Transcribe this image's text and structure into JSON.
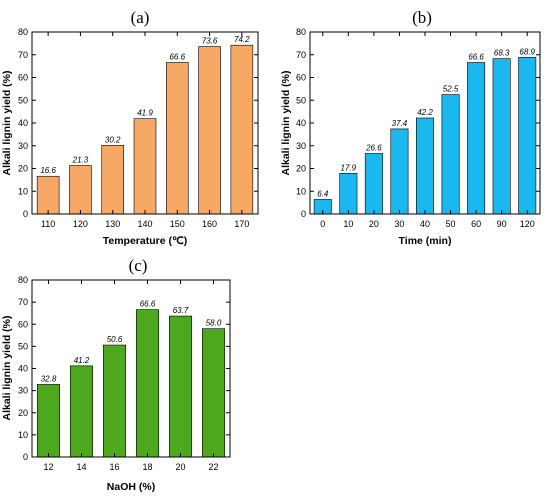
{
  "chart_data": [
    {
      "type": "bar",
      "panel_label": "(a)",
      "categories": [
        "110",
        "120",
        "130",
        "140",
        "150",
        "160",
        "170"
      ],
      "values": [
        16.6,
        21.3,
        30.2,
        41.9,
        66.6,
        73.6,
        74.2
      ],
      "data_labels": [
        "16.6",
        "21.3",
        "30.2",
        "41.9",
        "66.6",
        "73.6",
        "74.2"
      ],
      "xlabel": "Temperature (℃)",
      "ylabel": "Alkali lignin yield (%)",
      "ylim": [
        0,
        80
      ],
      "yticks": [
        "0",
        "10",
        "20",
        "30",
        "40",
        "50",
        "60",
        "70",
        "80"
      ],
      "bar_color": "#F7A766",
      "grid": false
    },
    {
      "type": "bar",
      "panel_label": "(b)",
      "categories": [
        "0",
        "10",
        "20",
        "30",
        "40",
        "50",
        "60",
        "90",
        "120"
      ],
      "values": [
        6.4,
        17.9,
        26.6,
        37.4,
        42.2,
        52.5,
        66.6,
        68.3,
        68.9
      ],
      "data_labels": [
        "6.4",
        "17.9",
        "26.6",
        "37.4",
        "42.2",
        "52.5",
        "66.6",
        "68.3",
        "68.9"
      ],
      "xlabel": "Time (min)",
      "ylabel": "Alkali lignin yield (%)",
      "ylim": [
        0,
        80
      ],
      "yticks": [
        "0",
        "10",
        "20",
        "30",
        "40",
        "50",
        "60",
        "70",
        "80"
      ],
      "bar_color": "#1BB8F0",
      "grid": false
    },
    {
      "type": "bar",
      "panel_label": "(c)",
      "categories": [
        "12",
        "14",
        "16",
        "18",
        "20",
        "22"
      ],
      "values": [
        32.8,
        41.2,
        50.6,
        66.6,
        63.7,
        58.0
      ],
      "data_labels": [
        "32.8",
        "41.2",
        "50.6",
        "66.6",
        "63.7",
        "58.0"
      ],
      "xlabel": "NaOH (%)",
      "ylabel": "Alkali lignin yield (%)",
      "ylim": [
        0,
        80
      ],
      "yticks": [
        "0",
        "10",
        "20",
        "30",
        "40",
        "50",
        "60",
        "70",
        "80"
      ],
      "bar_color": "#4EA81E",
      "grid": false
    }
  ]
}
